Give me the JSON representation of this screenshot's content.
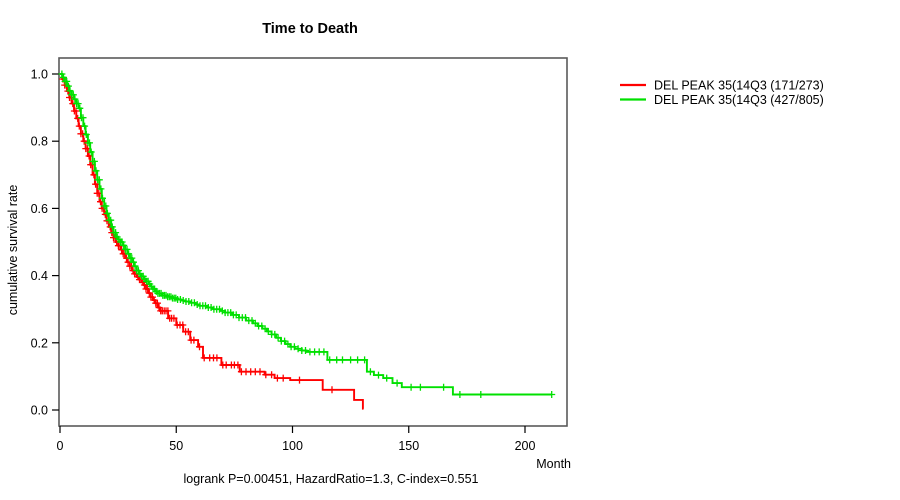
{
  "chart_data": {
    "type": "line",
    "subtype": "kaplan-meier-survival",
    "title": "Time to Death",
    "xlabel": "Month",
    "ylabel": "cumulative survival rate",
    "footer": "logrank P=0.00451, HazardRatio=1.3, C-index=0.551",
    "xlim": [
      0,
      218
    ],
    "ylim": [
      0,
      1.0
    ],
    "grid": false,
    "legend_position": "right-outside-top",
    "x_ticks": [
      0,
      50,
      100,
      150,
      200
    ],
    "x_tick_labels": [
      "0",
      "50",
      "100",
      "150",
      "200"
    ],
    "y_ticks": [
      0.0,
      0.2,
      0.4,
      0.6,
      0.8,
      1.0
    ],
    "y_tick_labels": [
      "0.0",
      "0.2",
      "0.4",
      "0.6",
      "0.8",
      "1.0"
    ],
    "axis_color": "#5a5a5a",
    "tick_color": "#000000",
    "series": [
      {
        "name": "DEL PEAK 35(14Q3 (171/273)",
        "color": "#ff0000",
        "end_month": 130.6,
        "points": [
          [
            0,
            1.0
          ],
          [
            1,
            0.985
          ],
          [
            2,
            0.967
          ],
          [
            3,
            0.949
          ],
          [
            4,
            0.93
          ],
          [
            5,
            0.912
          ],
          [
            6,
            0.89
          ],
          [
            7,
            0.868
          ],
          [
            8,
            0.845
          ],
          [
            9,
            0.822
          ],
          [
            10,
            0.8
          ],
          [
            11,
            0.778
          ],
          [
            12,
            0.756
          ],
          [
            13,
            0.73
          ],
          [
            14,
            0.7
          ],
          [
            15,
            0.672
          ],
          [
            16,
            0.645
          ],
          [
            17,
            0.62
          ],
          [
            18,
            0.6
          ],
          [
            19,
            0.582
          ],
          [
            20,
            0.563
          ],
          [
            21,
            0.545
          ],
          [
            22,
            0.528
          ],
          [
            23,
            0.513
          ],
          [
            24,
            0.5
          ],
          [
            25,
            0.489
          ],
          [
            26,
            0.477
          ],
          [
            27,
            0.465
          ],
          [
            28,
            0.452
          ],
          [
            29,
            0.44
          ],
          [
            30,
            0.428
          ],
          [
            31,
            0.415
          ],
          [
            32,
            0.405
          ],
          [
            33,
            0.396
          ],
          [
            34,
            0.388
          ],
          [
            35,
            0.38
          ],
          [
            36,
            0.372
          ],
          [
            37,
            0.36
          ],
          [
            38,
            0.348
          ],
          [
            39,
            0.336
          ],
          [
            40,
            0.327
          ],
          [
            41,
            0.318
          ],
          [
            42,
            0.305
          ],
          [
            43,
            0.295
          ],
          [
            46.5,
            0.273
          ],
          [
            50,
            0.253
          ],
          [
            53,
            0.233
          ],
          [
            56,
            0.208
          ],
          [
            59.4,
            0.188
          ],
          [
            61.5,
            0.155
          ],
          [
            69.4,
            0.134
          ],
          [
            77.3,
            0.114
          ],
          [
            88,
            0.105
          ],
          [
            92.3,
            0.095
          ],
          [
            99,
            0.089
          ],
          [
            113,
            0.06
          ],
          [
            126.5,
            0.03
          ],
          [
            130.3,
            0.004
          ]
        ],
        "censor_months": [
          1.2,
          2,
          2.7,
          3.4,
          4.1,
          4.8,
          5.5,
          6.2,
          6.9,
          7.6,
          8.3,
          9,
          9.7,
          10.4,
          11.1,
          11.8,
          12.5,
          13.2,
          13.9,
          14.6,
          15.3,
          16,
          16.7,
          17.4,
          18.1,
          18.8,
          19.5,
          20.2,
          20.9,
          21.6,
          22.3,
          23,
          23.7,
          24.4,
          25.1,
          25.8,
          26.5,
          27.2,
          27.9,
          28.6,
          29.3,
          30,
          30.7,
          31.4,
          32.1,
          32.8,
          33.5,
          34.2,
          34.9,
          35.6,
          36.3,
          37,
          37.7,
          38.4,
          39.1,
          39.8,
          40.5,
          41.2,
          41.9,
          42.6,
          43.3,
          44,
          44.8,
          45.6,
          46.4,
          47.2,
          48,
          49,
          50.4,
          51.6,
          52.8,
          54,
          55.2,
          56.4,
          57.6,
          60,
          62,
          64.4,
          66,
          67.5,
          70,
          71.5,
          73.7,
          75,
          76.5,
          78,
          80,
          82,
          84,
          86,
          88.5,
          91,
          93.5,
          96,
          103,
          117
        ]
      },
      {
        "name": "DEL PEAK 35(14Q3 (427/805)",
        "color": "#00e000",
        "end_month": 211.6,
        "points": [
          [
            0,
            1.0
          ],
          [
            1,
            0.99
          ],
          [
            2,
            0.978
          ],
          [
            3,
            0.964
          ],
          [
            4,
            0.95
          ],
          [
            5,
            0.938
          ],
          [
            6,
            0.925
          ],
          [
            7,
            0.912
          ],
          [
            8,
            0.898
          ],
          [
            9,
            0.87
          ],
          [
            10,
            0.845
          ],
          [
            11,
            0.82
          ],
          [
            12,
            0.795
          ],
          [
            13,
            0.768
          ],
          [
            14,
            0.74
          ],
          [
            15,
            0.712
          ],
          [
            16,
            0.685
          ],
          [
            17,
            0.658
          ],
          [
            18,
            0.63
          ],
          [
            19,
            0.607
          ],
          [
            20,
            0.585
          ],
          [
            21,
            0.565
          ],
          [
            22,
            0.545
          ],
          [
            23,
            0.528
          ],
          [
            24,
            0.515
          ],
          [
            25,
            0.508
          ],
          [
            26,
            0.5
          ],
          [
            27,
            0.49
          ],
          [
            28,
            0.478
          ],
          [
            29,
            0.465
          ],
          [
            30,
            0.452
          ],
          [
            31,
            0.44
          ],
          [
            32,
            0.428
          ],
          [
            33,
            0.415
          ],
          [
            34,
            0.405
          ],
          [
            35,
            0.398
          ],
          [
            36,
            0.39
          ],
          [
            37,
            0.383
          ],
          [
            38,
            0.375
          ],
          [
            39,
            0.368
          ],
          [
            40,
            0.36
          ],
          [
            41,
            0.353
          ],
          [
            42,
            0.347
          ],
          [
            44,
            0.341
          ],
          [
            46,
            0.337
          ],
          [
            48,
            0.333
          ],
          [
            50,
            0.329
          ],
          [
            52,
            0.326
          ],
          [
            54,
            0.323
          ],
          [
            56,
            0.319
          ],
          [
            58,
            0.314
          ],
          [
            60,
            0.31
          ],
          [
            63,
            0.305
          ],
          [
            66,
            0.3
          ],
          [
            69,
            0.295
          ],
          [
            71,
            0.29
          ],
          [
            74,
            0.283
          ],
          [
            77,
            0.275
          ],
          [
            80,
            0.266
          ],
          [
            83,
            0.258
          ],
          [
            85,
            0.25
          ],
          [
            87,
            0.242
          ],
          [
            89,
            0.234
          ],
          [
            91,
            0.225
          ],
          [
            93,
            0.215
          ],
          [
            95,
            0.205
          ],
          [
            97,
            0.196
          ],
          [
            99,
            0.188
          ],
          [
            101,
            0.182
          ],
          [
            104,
            0.177
          ],
          [
            106,
            0.173
          ],
          [
            115,
            0.149
          ],
          [
            132,
            0.114
          ],
          [
            135,
            0.104
          ],
          [
            139,
            0.095
          ],
          [
            143,
            0.08
          ],
          [
            147,
            0.068
          ],
          [
            169,
            0.046
          ]
        ],
        "censor_months": [
          0.8,
          1.5,
          2.2,
          2.9,
          3.6,
          4.3,
          5,
          5.7,
          6.4,
          7.1,
          7.8,
          8.5,
          9.2,
          9.9,
          10.6,
          11.3,
          12,
          12.7,
          13.4,
          14.1,
          14.8,
          15.5,
          16.2,
          16.9,
          17.6,
          18.3,
          19,
          19.7,
          20.4,
          21.1,
          21.8,
          22.5,
          23.2,
          23.9,
          24.6,
          25.3,
          26,
          26.7,
          27.4,
          28.1,
          28.8,
          29.5,
          30.2,
          30.9,
          31.6,
          32.3,
          33,
          33.7,
          34.4,
          35.1,
          35.8,
          36.5,
          37.2,
          37.9,
          38.6,
          39.3,
          40,
          40.7,
          41.4,
          42.1,
          42.8,
          43.5,
          44.2,
          44.9,
          45.6,
          46.3,
          47,
          47.7,
          48.4,
          49.1,
          49.8,
          50.6,
          51.8,
          53,
          54.2,
          55.4,
          56.6,
          57.8,
          59,
          60.2,
          61.4,
          62.6,
          63.8,
          65,
          66.2,
          67.4,
          68.6,
          69.8,
          71,
          72.2,
          73.4,
          74.6,
          75.8,
          77,
          78.4,
          79.8,
          81.2,
          82.6,
          84,
          85.4,
          86.8,
          88.2,
          89.6,
          91,
          92.4,
          93.8,
          95.2,
          96.6,
          98,
          99.4,
          100.8,
          102.4,
          104,
          105.6,
          107.5,
          109.5,
          111.5,
          113.5,
          116,
          119,
          121.5,
          125,
          128,
          131,
          133.5,
          137,
          140.5,
          145,
          151,
          155,
          165,
          172,
          181,
          211.5
        ]
      }
    ]
  },
  "legend": {
    "entries": [
      {
        "label": "DEL PEAK 35(14Q3 (171/273)",
        "color": "#ff0000"
      },
      {
        "label": "DEL PEAK 35(14Q3 (427/805)",
        "color": "#00e000"
      }
    ]
  },
  "texts": {
    "title": "Time to Death",
    "ylabel": "cumulative survival rate",
    "xlabel": "Month",
    "footer": "logrank P=0.00451, HazardRatio=1.3, C-index=0.551"
  }
}
